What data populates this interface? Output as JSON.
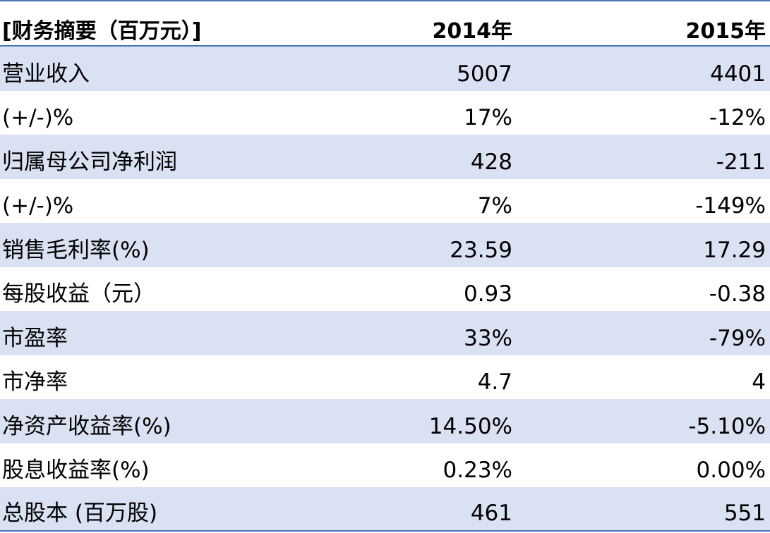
{
  "table": {
    "header": {
      "label": "[财务摘要（百万元）]",
      "col_2014": "2014年",
      "col_2015": "2015年"
    },
    "rows": [
      {
        "label": "营业收入",
        "v2014": "5007",
        "v2015": "4401",
        "shaded": true
      },
      {
        "label": "(+/-)%",
        "v2014": "17%",
        "v2015": "-12%",
        "shaded": false
      },
      {
        "label": "归属母公司净利润",
        "v2014": "428",
        "v2015": "-211",
        "shaded": true
      },
      {
        "label": "(+/-)%",
        "v2014": "7%",
        "v2015": "-149%",
        "shaded": false
      },
      {
        "label": "销售毛利率(%)",
        "v2014": "23.59",
        "v2015": "17.29",
        "shaded": true
      },
      {
        "label": "每股收益（元）",
        "v2014": "0.93",
        "v2015": "-0.38",
        "shaded": false
      },
      {
        "label": "市盈率",
        "v2014": "33%",
        "v2015": "-79%",
        "shaded": true
      },
      {
        "label": "市净率",
        "v2014": "4.7",
        "v2015": "4",
        "shaded": false
      },
      {
        "label": "净资产收益率(%)",
        "v2014": "14.50%",
        "v2015": "-5.10%",
        "shaded": true
      },
      {
        "label": "股息收益率(%)",
        "v2014": "0.23%",
        "v2015": "0.00%",
        "shaded": false
      },
      {
        "label": "总股本 (百万股)",
        "v2014": "461",
        "v2015": "551",
        "shaded": true
      }
    ]
  },
  "colors": {
    "border": "#4a74b4",
    "row_shade": "#d9e1f2"
  }
}
